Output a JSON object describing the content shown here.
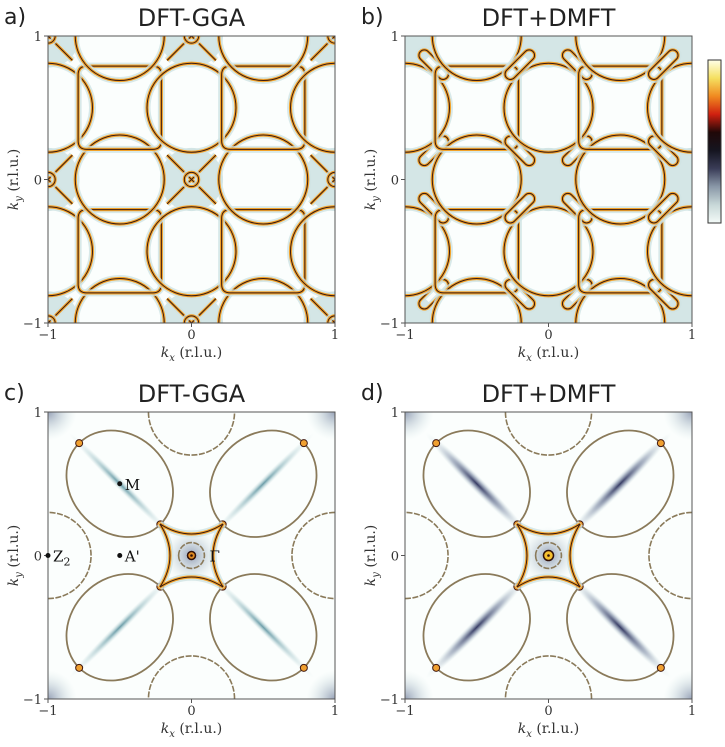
{
  "chart_data": {
    "type": "heatmap",
    "colorbar": {
      "stops": [
        "#ffffe8",
        "#f5e060",
        "#f08a20",
        "#d02010",
        "#200808",
        "#151520",
        "#3a3d58",
        "#8a98a8",
        "#c8d8d8",
        "#f4fbf8"
      ],
      "tick_labels": []
    },
    "panels": [
      {
        "label": "a)",
        "title": "DFT-GGA",
        "xlabel_k": "k",
        "xlabel_sub": "x",
        "xlabel_unit": " (r.l.u.)",
        "ylabel_k": "k",
        "ylabel_sub": "y",
        "ylabel_unit": " (r.l.u.)",
        "xlim": [
          -1,
          1
        ],
        "ylim": [
          -1,
          1
        ],
        "xticks": [
          "−1",
          "0",
          "1"
        ],
        "yticks": [
          "−1",
          "0",
          "1"
        ],
        "kind": "gga-top",
        "points": []
      },
      {
        "label": "b)",
        "title": "DFT+DMFT",
        "xlabel_k": "k",
        "xlabel_sub": "x",
        "xlabel_unit": " (r.l.u.)",
        "ylabel_k": "k",
        "ylabel_sub": "y",
        "ylabel_unit": " (r.l.u.)",
        "xlim": [
          -1,
          1
        ],
        "ylim": [
          -1,
          1
        ],
        "xticks": [
          "−1",
          "0",
          "1"
        ],
        "yticks": [
          "−1",
          "0",
          "1"
        ],
        "kind": "dmft-top",
        "points": []
      },
      {
        "label": "c)",
        "title": "DFT-GGA",
        "xlabel_k": "k",
        "xlabel_sub": "x",
        "xlabel_unit": " (r.l.u.)",
        "ylabel_k": "k",
        "ylabel_sub": "y",
        "ylabel_unit": " (r.l.u.)",
        "xlim": [
          -1,
          1
        ],
        "ylim": [
          -1,
          1
        ],
        "xticks": [
          "−1",
          "0",
          "1"
        ],
        "yticks": [
          "−1",
          "0",
          "1"
        ],
        "kind": "gga-bottom",
        "points": [
          {
            "name": "M",
            "sub": "",
            "x": -0.5,
            "y": 0.5,
            "dot": true
          },
          {
            "name": "A'",
            "sub": "",
            "x": -0.5,
            "y": 0.0,
            "dot": true
          },
          {
            "name": "Z",
            "sub": "2",
            "x": -1.0,
            "y": 0.0,
            "dot": true
          },
          {
            "name": "Γ",
            "sub": "",
            "x": 0.0,
            "y": 0.0,
            "dot": false
          }
        ]
      },
      {
        "label": "d)",
        "title": "DFT+DMFT",
        "xlabel_k": "k",
        "xlabel_sub": "x",
        "xlabel_unit": " (r.l.u.)",
        "ylabel_k": "k",
        "ylabel_sub": "y",
        "ylabel_unit": " (r.l.u.)",
        "xlim": [
          -1,
          1
        ],
        "ylim": [
          -1,
          1
        ],
        "xticks": [
          "−1",
          "0",
          "1"
        ],
        "yticks": [
          "−1",
          "0",
          "1"
        ],
        "kind": "dmft-bottom",
        "points": []
      }
    ]
  }
}
